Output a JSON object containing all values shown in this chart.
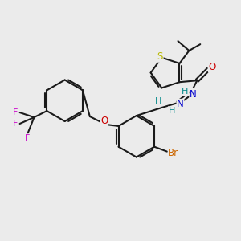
{
  "background_color": "#ebebeb",
  "bond_color": "#1a1a1a",
  "atom_colors": {
    "S": "#b8b800",
    "N": "#0000cc",
    "O": "#cc0000",
    "Br": "#cc6600",
    "F": "#cc00cc",
    "H": "#008888",
    "C": "#1a1a1a"
  },
  "figsize": [
    3.0,
    3.0
  ],
  "dpi": 100
}
